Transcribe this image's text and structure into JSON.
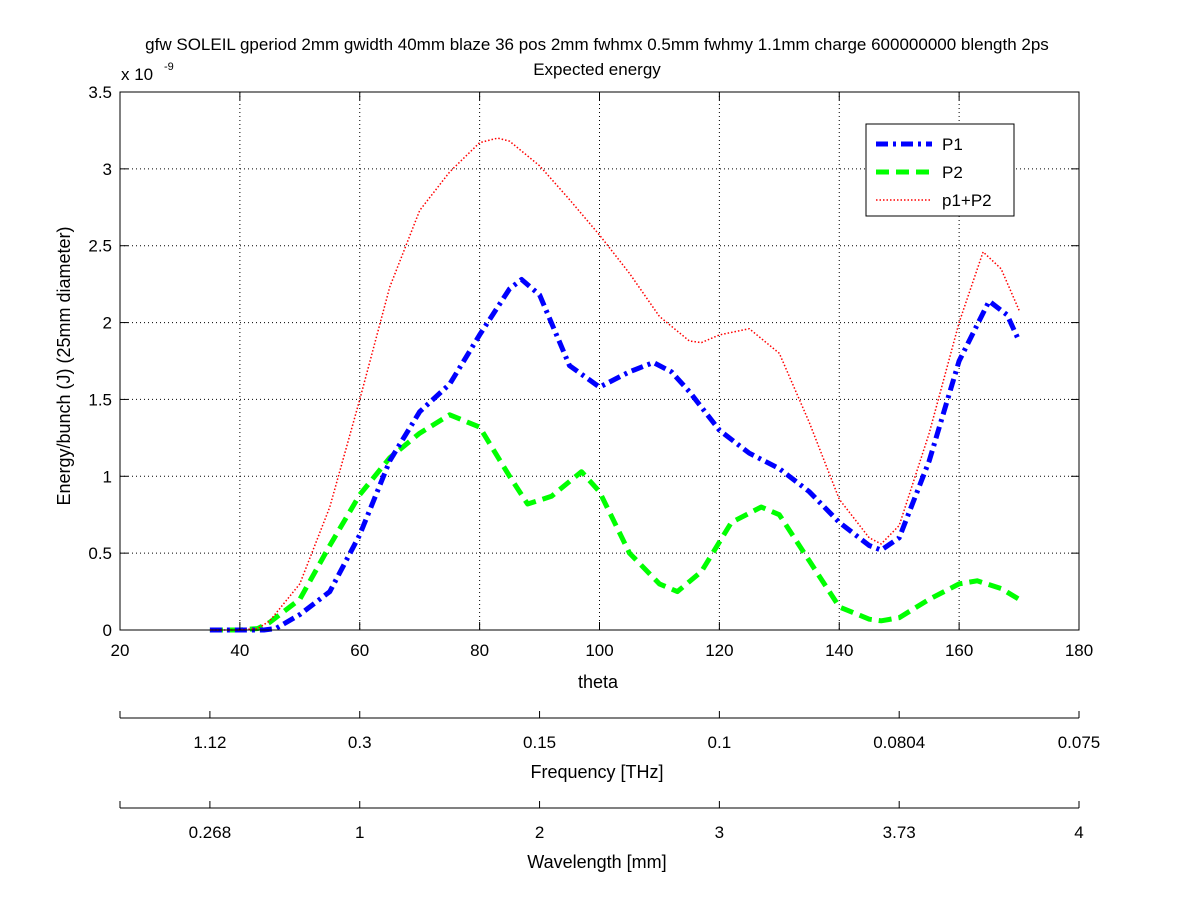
{
  "chart_data": {
    "type": "line",
    "title": "gfw SOLEIL gperiod 2mm gwidth 40mm blaze 36 pos 2mm fwhmx 0.5mm fwhmy 1.1mm charge 600000000 blength 2ps",
    "subtitle": "Expected energy",
    "xlabel": "theta",
    "ylabel": "Energy/bunch (J)  (25mm diameter)",
    "y_exponent_label": "x 10",
    "y_exponent_power": "-9",
    "xlim": [
      20,
      180
    ],
    "ylim": [
      0,
      3.5
    ],
    "x_ticks": [
      "20",
      "40",
      "60",
      "80",
      "100",
      "120",
      "140",
      "160",
      "180"
    ],
    "y_ticks": [
      "0",
      "0.5",
      "1",
      "1.5",
      "2",
      "2.5",
      "3",
      "3.5"
    ],
    "grid": true,
    "legend_position": "top-right",
    "series": [
      {
        "name": "P1",
        "color": "#0000ff",
        "style": "dash-dot",
        "x": [
          35,
          40,
          44,
          46,
          50,
          55,
          60,
          65,
          70,
          75,
          80,
          85,
          87,
          90,
          95,
          100,
          105,
          109,
          112,
          115,
          120,
          125,
          130,
          135,
          140,
          145,
          147,
          150,
          155,
          160,
          165,
          168,
          170
        ],
        "y": [
          0.0,
          0.0,
          0.0,
          0.01,
          0.1,
          0.25,
          0.62,
          1.1,
          1.42,
          1.6,
          1.92,
          2.22,
          2.28,
          2.18,
          1.72,
          1.58,
          1.68,
          1.74,
          1.68,
          1.55,
          1.3,
          1.15,
          1.05,
          0.9,
          0.7,
          0.55,
          0.52,
          0.6,
          1.1,
          1.75,
          2.14,
          2.05,
          1.88
        ]
      },
      {
        "name": "P2",
        "color": "#00ff00",
        "style": "dashed",
        "x": [
          35,
          40,
          43,
          45,
          50,
          55,
          60,
          65,
          70,
          75,
          80,
          85,
          88,
          92,
          97,
          100,
          105,
          110,
          113,
          117,
          122,
          127,
          130,
          135,
          140,
          145,
          147,
          150,
          155,
          160,
          163,
          167,
          170
        ],
        "y": [
          0.0,
          0.0,
          0.01,
          0.05,
          0.2,
          0.55,
          0.88,
          1.12,
          1.28,
          1.4,
          1.32,
          1.0,
          0.82,
          0.87,
          1.03,
          0.9,
          0.5,
          0.3,
          0.25,
          0.38,
          0.7,
          0.8,
          0.75,
          0.45,
          0.15,
          0.07,
          0.06,
          0.08,
          0.2,
          0.3,
          0.32,
          0.27,
          0.2
        ]
      },
      {
        "name": "p1+P2",
        "color": "#ff0000",
        "style": "dotted",
        "x": [
          35,
          40,
          43,
          45,
          50,
          55,
          60,
          65,
          70,
          75,
          80,
          83,
          85,
          90,
          95,
          100,
          105,
          110,
          115,
          117,
          120,
          125,
          130,
          135,
          140,
          145,
          147,
          150,
          155,
          160,
          164,
          167,
          170
        ],
        "y": [
          0.0,
          0.0,
          0.01,
          0.06,
          0.3,
          0.8,
          1.5,
          2.23,
          2.73,
          2.98,
          3.17,
          3.2,
          3.18,
          3.02,
          2.8,
          2.57,
          2.32,
          2.04,
          1.88,
          1.87,
          1.92,
          1.96,
          1.8,
          1.35,
          0.85,
          0.6,
          0.56,
          0.68,
          1.28,
          2.0,
          2.46,
          2.35,
          2.08
        ]
      }
    ],
    "secondary_axes": [
      {
        "label": "Frequency [THz]",
        "ticks": [
          {
            "text": "1.12",
            "theta": 35
          },
          {
            "text": "0.3",
            "theta": 60
          },
          {
            "text": "0.15",
            "theta": 90
          },
          {
            "text": "0.1",
            "theta": 120
          },
          {
            "text": "0.0804",
            "theta": 150
          },
          {
            "text": "0.075",
            "theta": 180
          }
        ]
      },
      {
        "label": "Wavelength [mm]",
        "ticks": [
          {
            "text": "0.268",
            "theta": 35
          },
          {
            "text": "1",
            "theta": 60
          },
          {
            "text": "2",
            "theta": 90
          },
          {
            "text": "3",
            "theta": 120
          },
          {
            "text": "3.73",
            "theta": 150
          },
          {
            "text": "4",
            "theta": 180
          }
        ]
      }
    ]
  }
}
